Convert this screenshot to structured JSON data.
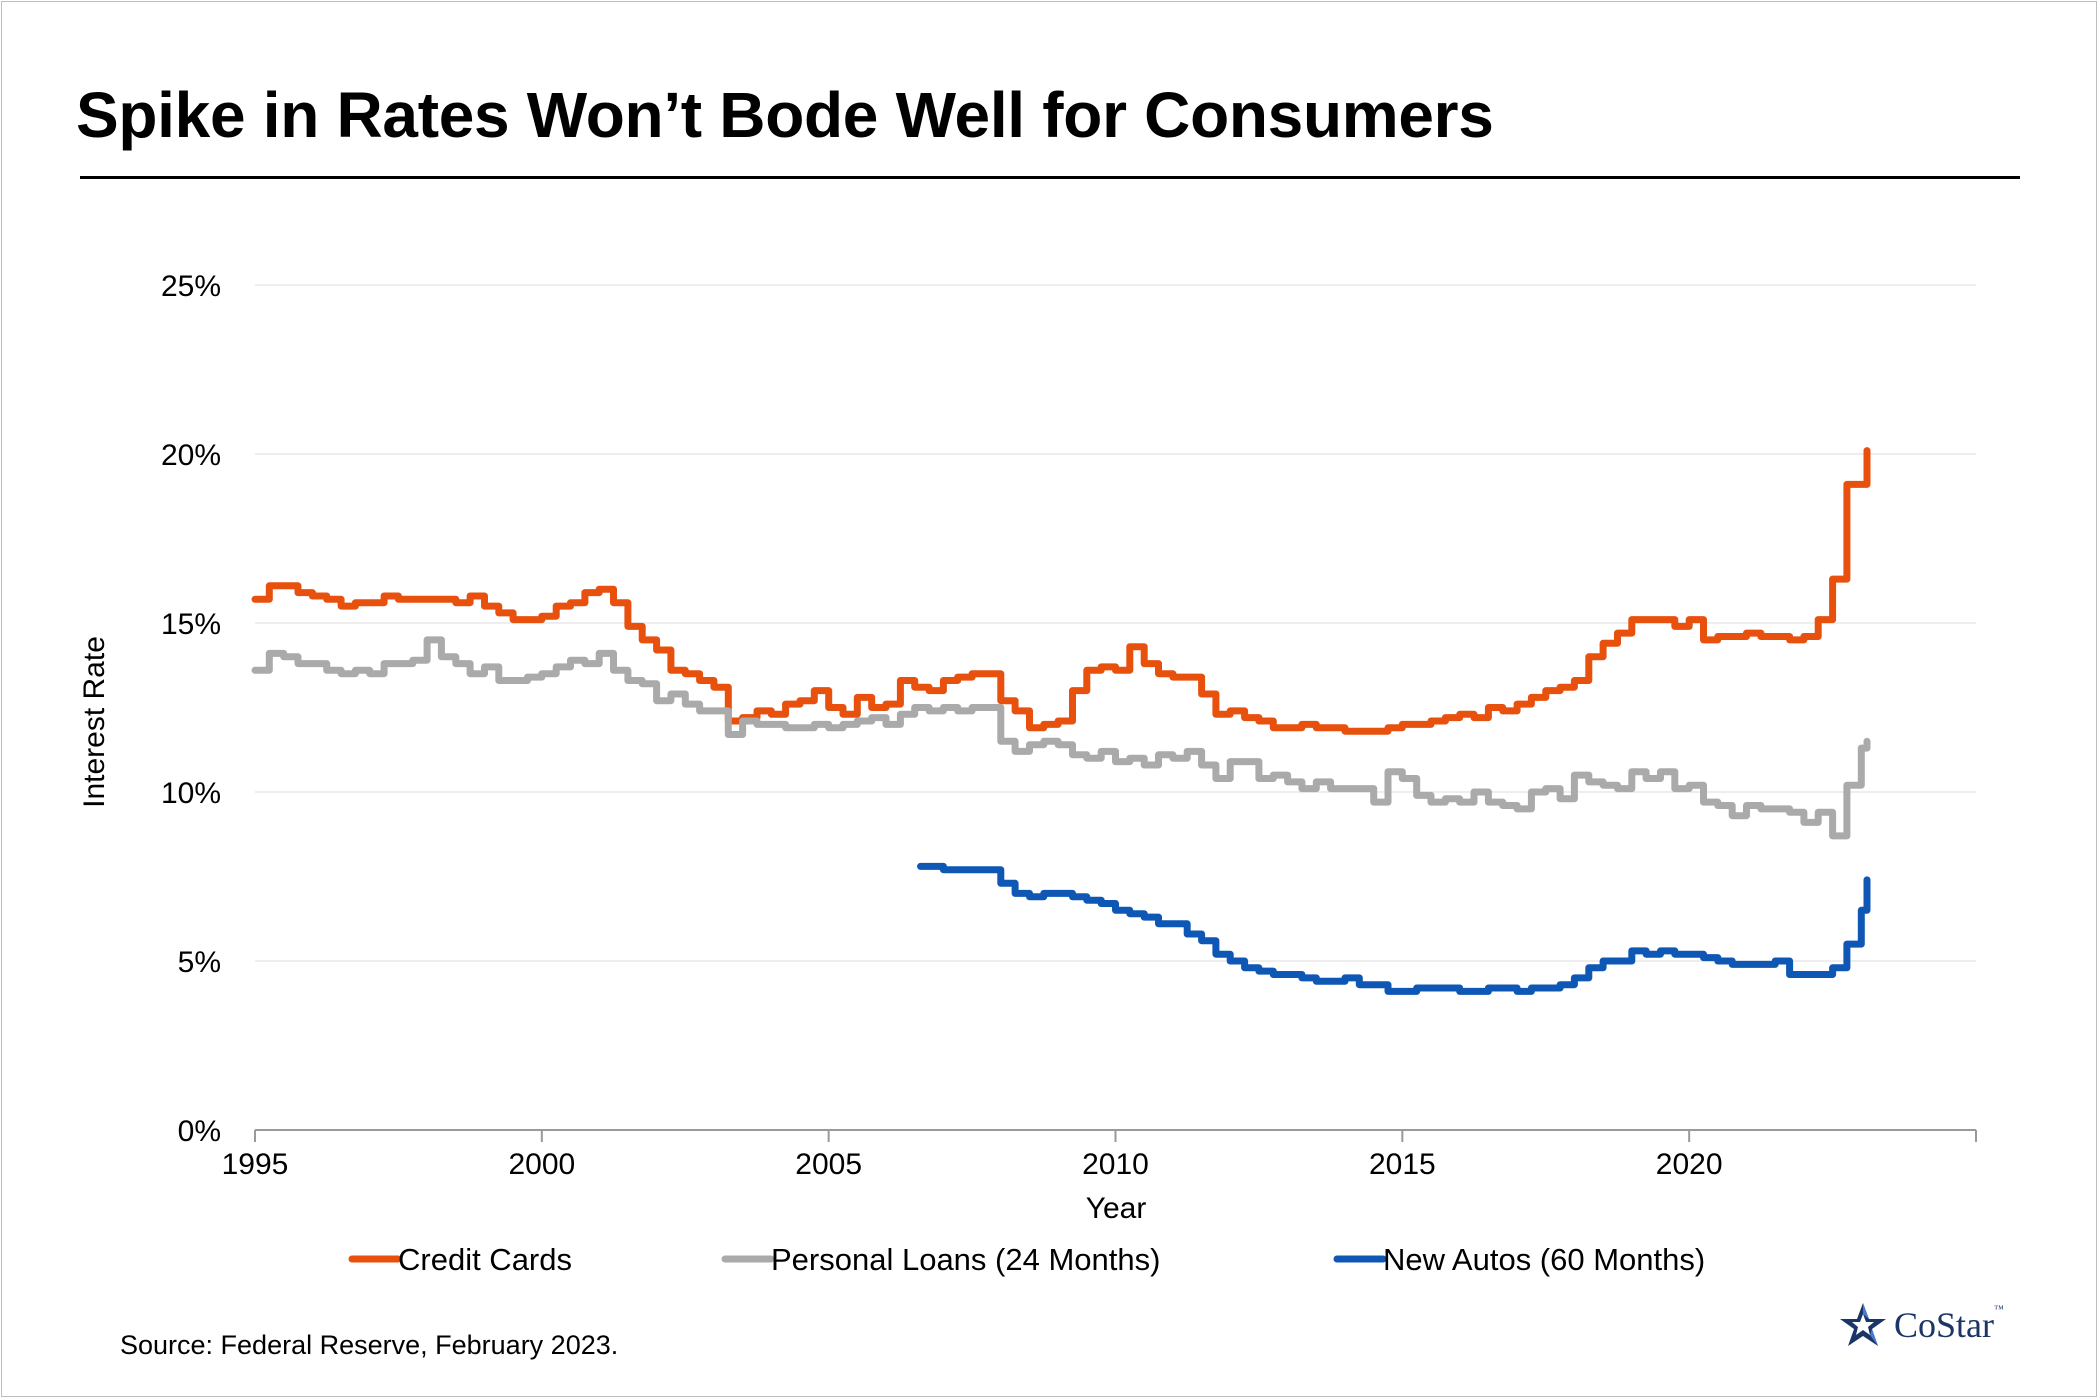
{
  "header": {
    "title": "Spike in Rates Won’t Bode Well for Consumers"
  },
  "footer": {
    "source": "Source: Federal Reserve, February 2023.",
    "logo_text": "CoStar",
    "logo_tm": "™"
  },
  "colors": {
    "credit_cards": "#e8500e",
    "personal_loans": "#aaaaaa",
    "new_autos": "#0f57b5",
    "grid": "#eeeeee",
    "axis": "#9a9a9a"
  },
  "chart_data": {
    "type": "line",
    "title": "",
    "xlabel": "Year",
    "ylabel": "Interest Rate",
    "xlim": [
      1995,
      2025
    ],
    "ylim": [
      0,
      25
    ],
    "x_ticks": [
      1995,
      2000,
      2005,
      2010,
      2015,
      2020
    ],
    "x_tick_labels": [
      "1995",
      "2000",
      "2005",
      "2010",
      "2015",
      "2020"
    ],
    "y_ticks": [
      0,
      5,
      10,
      15,
      20,
      25
    ],
    "y_tick_labels": [
      "0%",
      "5%",
      "10%",
      "15%",
      "20%",
      "25%"
    ],
    "grid": "horizontal",
    "legend_position": "bottom",
    "series": [
      {
        "name": "Credit Cards",
        "color": "#e8500e",
        "x": [
          1995.0,
          1995.25,
          1995.5,
          1995.75,
          1996.0,
          1996.25,
          1996.5,
          1996.75,
          1997.0,
          1997.25,
          1997.5,
          1997.75,
          1998.0,
          1998.25,
          1998.5,
          1998.75,
          1999.0,
          1999.25,
          1999.5,
          1999.75,
          2000.0,
          2000.25,
          2000.5,
          2000.75,
          2001.0,
          2001.25,
          2001.5,
          2001.75,
          2002.0,
          2002.25,
          2002.5,
          2002.75,
          2003.0,
          2003.25,
          2003.5,
          2003.75,
          2004.0,
          2004.25,
          2004.5,
          2004.75,
          2005.0,
          2005.25,
          2005.5,
          2005.75,
          2006.0,
          2006.25,
          2006.5,
          2006.75,
          2007.0,
          2007.25,
          2007.5,
          2007.75,
          2008.0,
          2008.25,
          2008.5,
          2008.75,
          2009.0,
          2009.25,
          2009.5,
          2009.75,
          2010.0,
          2010.25,
          2010.5,
          2010.75,
          2011.0,
          2011.25,
          2011.5,
          2011.75,
          2012.0,
          2012.25,
          2012.5,
          2012.75,
          2013.0,
          2013.25,
          2013.5,
          2013.75,
          2014.0,
          2014.25,
          2014.5,
          2014.75,
          2015.0,
          2015.25,
          2015.5,
          2015.75,
          2016.0,
          2016.25,
          2016.5,
          2016.75,
          2017.0,
          2017.25,
          2017.5,
          2017.75,
          2018.0,
          2018.25,
          2018.5,
          2018.75,
          2019.0,
          2019.25,
          2019.5,
          2019.75,
          2020.0,
          2020.25,
          2020.5,
          2020.75,
          2021.0,
          2021.25,
          2021.5,
          2021.75,
          2022.0,
          2022.25,
          2022.5,
          2022.75,
          2023.0,
          2023.1
        ],
        "values": [
          15.7,
          16.1,
          16.1,
          15.9,
          15.8,
          15.7,
          15.5,
          15.6,
          15.6,
          15.8,
          15.7,
          15.7,
          15.7,
          15.7,
          15.6,
          15.8,
          15.5,
          15.3,
          15.1,
          15.1,
          15.2,
          15.5,
          15.6,
          15.9,
          16.0,
          15.6,
          14.9,
          14.5,
          14.2,
          13.6,
          13.5,
          13.3,
          13.1,
          12.1,
          12.2,
          12.4,
          12.3,
          12.6,
          12.7,
          13.0,
          12.5,
          12.3,
          12.8,
          12.5,
          12.6,
          13.3,
          13.1,
          13.0,
          13.3,
          13.4,
          13.5,
          13.5,
          12.7,
          12.4,
          11.9,
          12.0,
          12.1,
          13.0,
          13.6,
          13.7,
          13.6,
          14.3,
          13.8,
          13.5,
          13.4,
          13.4,
          12.9,
          12.3,
          12.4,
          12.2,
          12.1,
          11.9,
          11.9,
          12.0,
          11.9,
          11.9,
          11.8,
          11.8,
          11.8,
          11.9,
          12.0,
          12.0,
          12.1,
          12.2,
          12.3,
          12.2,
          12.5,
          12.4,
          12.6,
          12.8,
          13.0,
          13.1,
          13.3,
          14.0,
          14.4,
          14.7,
          15.1,
          15.1,
          15.1,
          14.9,
          15.1,
          14.5,
          14.6,
          14.6,
          14.7,
          14.6,
          14.6,
          14.5,
          14.6,
          15.1,
          16.3,
          19.1,
          19.1,
          20.1
        ]
      },
      {
        "name": "Personal Loans (24 Months)",
        "color": "#aaaaaa",
        "x": [
          1995.0,
          1995.25,
          1995.5,
          1995.75,
          1996.0,
          1996.25,
          1996.5,
          1996.75,
          1997.0,
          1997.25,
          1997.5,
          1997.75,
          1998.0,
          1998.25,
          1998.5,
          1998.75,
          1999.0,
          1999.25,
          1999.5,
          1999.75,
          2000.0,
          2000.25,
          2000.5,
          2000.75,
          2001.0,
          2001.25,
          2001.5,
          2001.75,
          2002.0,
          2002.25,
          2002.5,
          2002.75,
          2003.0,
          2003.25,
          2003.5,
          2003.75,
          2004.0,
          2004.25,
          2004.5,
          2004.75,
          2005.0,
          2005.25,
          2005.5,
          2005.75,
          2006.0,
          2006.25,
          2006.5,
          2006.75,
          2007.0,
          2007.25,
          2007.5,
          2007.75,
          2008.0,
          2008.25,
          2008.5,
          2008.75,
          2009.0,
          2009.25,
          2009.5,
          2009.75,
          2010.0,
          2010.25,
          2010.5,
          2010.75,
          2011.0,
          2011.25,
          2011.5,
          2011.75,
          2012.0,
          2012.25,
          2012.5,
          2012.75,
          2013.0,
          2013.25,
          2013.5,
          2013.75,
          2014.0,
          2014.25,
          2014.5,
          2014.75,
          2015.0,
          2015.25,
          2015.5,
          2015.75,
          2016.0,
          2016.25,
          2016.5,
          2016.75,
          2017.0,
          2017.25,
          2017.5,
          2017.75,
          2018.0,
          2018.25,
          2018.5,
          2018.75,
          2019.0,
          2019.25,
          2019.5,
          2019.75,
          2020.0,
          2020.25,
          2020.5,
          2020.75,
          2021.0,
          2021.25,
          2021.5,
          2021.75,
          2022.0,
          2022.25,
          2022.5,
          2022.75,
          2023.0,
          2023.1
        ],
        "values": [
          13.6,
          14.1,
          14.0,
          13.8,
          13.8,
          13.6,
          13.5,
          13.6,
          13.5,
          13.8,
          13.8,
          13.9,
          14.5,
          14.0,
          13.8,
          13.5,
          13.7,
          13.3,
          13.3,
          13.4,
          13.5,
          13.7,
          13.9,
          13.8,
          14.1,
          13.6,
          13.3,
          13.2,
          12.7,
          12.9,
          12.6,
          12.4,
          12.4,
          11.7,
          12.1,
          12.0,
          12.0,
          11.9,
          11.9,
          12.0,
          11.9,
          12.0,
          12.1,
          12.2,
          12.0,
          12.3,
          12.5,
          12.4,
          12.5,
          12.4,
          12.5,
          12.5,
          11.5,
          11.2,
          11.4,
          11.5,
          11.4,
          11.1,
          11.0,
          11.2,
          10.9,
          11.0,
          10.8,
          11.1,
          11.0,
          11.2,
          10.8,
          10.4,
          10.9,
          10.9,
          10.4,
          10.5,
          10.3,
          10.1,
          10.3,
          10.1,
          10.1,
          10.1,
          9.7,
          10.6,
          10.4,
          9.9,
          9.7,
          9.8,
          9.7,
          10.0,
          9.7,
          9.6,
          9.5,
          10.0,
          10.1,
          9.8,
          10.5,
          10.3,
          10.2,
          10.1,
          10.6,
          10.4,
          10.6,
          10.1,
          10.2,
          9.7,
          9.6,
          9.3,
          9.6,
          9.5,
          9.5,
          9.4,
          9.1,
          9.4,
          8.7,
          10.2,
          11.3,
          11.5
        ]
      },
      {
        "name": "New Autos (60 Months)",
        "color": "#0f57b5",
        "x": [
          2006.6,
          2006.75,
          2007.0,
          2007.25,
          2007.5,
          2007.75,
          2008.0,
          2008.25,
          2008.5,
          2008.75,
          2009.0,
          2009.25,
          2009.5,
          2009.75,
          2010.0,
          2010.25,
          2010.5,
          2010.75,
          2011.0,
          2011.25,
          2011.5,
          2011.75,
          2012.0,
          2012.25,
          2012.5,
          2012.75,
          2013.0,
          2013.25,
          2013.5,
          2013.75,
          2014.0,
          2014.25,
          2014.5,
          2014.75,
          2015.0,
          2015.25,
          2015.5,
          2015.75,
          2016.0,
          2016.25,
          2016.5,
          2016.75,
          2017.0,
          2017.25,
          2017.5,
          2017.75,
          2018.0,
          2018.25,
          2018.5,
          2018.75,
          2019.0,
          2019.25,
          2019.5,
          2019.75,
          2020.0,
          2020.25,
          2020.5,
          2020.75,
          2021.0,
          2021.25,
          2021.5,
          2021.75,
          2022.0,
          2022.25,
          2022.5,
          2022.75,
          2023.0,
          2023.1
        ],
        "values": [
          7.8,
          7.8,
          7.7,
          7.7,
          7.7,
          7.7,
          7.3,
          7.0,
          6.9,
          7.0,
          7.0,
          6.9,
          6.8,
          6.7,
          6.5,
          6.4,
          6.3,
          6.1,
          6.1,
          5.8,
          5.6,
          5.2,
          5.0,
          4.8,
          4.7,
          4.6,
          4.6,
          4.5,
          4.4,
          4.4,
          4.5,
          4.3,
          4.3,
          4.1,
          4.1,
          4.2,
          4.2,
          4.2,
          4.1,
          4.1,
          4.2,
          4.2,
          4.1,
          4.2,
          4.2,
          4.3,
          4.5,
          4.8,
          5.0,
          5.0,
          5.3,
          5.2,
          5.3,
          5.2,
          5.2,
          5.1,
          5.0,
          4.9,
          4.9,
          4.9,
          5.0,
          4.6,
          4.6,
          4.6,
          4.8,
          5.5,
          6.5,
          7.4
        ]
      }
    ]
  }
}
